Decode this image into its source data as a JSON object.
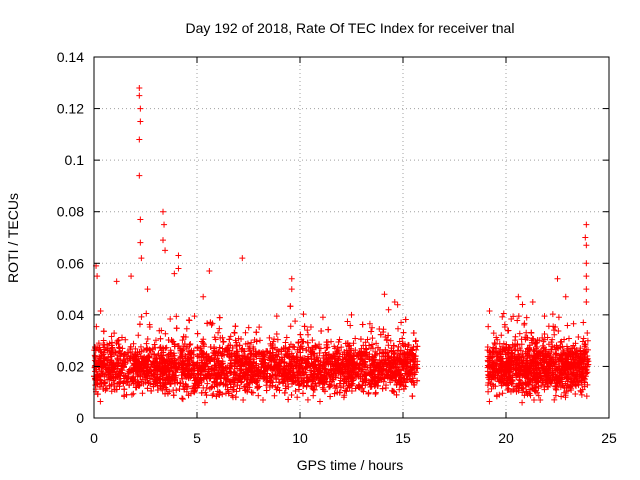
{
  "chart_data": {
    "type": "scatter",
    "title": "Day 192 of 2018, Rate Of TEC Index for receiver tnal",
    "xlabel": "GPS time / hours",
    "ylabel": "ROTI / TECUs",
    "xlim": [
      0,
      25
    ],
    "ylim": [
      0,
      0.14
    ],
    "xticks": [
      0,
      5,
      10,
      15,
      20,
      25
    ],
    "xtick_labels": [
      "0",
      "5",
      "10",
      "15",
      "20",
      "25"
    ],
    "yticks": [
      0,
      0.02,
      0.04,
      0.06,
      0.08,
      0.1,
      0.12,
      0.14
    ],
    "ytick_labels": [
      "0",
      "0.02",
      "0.04",
      "0.06",
      "0.08",
      "0.1",
      "0.12",
      "0.14"
    ],
    "grid": true,
    "marker": "+",
    "color": "#ff0000",
    "series": [
      {
        "name": "ROTI",
        "segments": [
          {
            "x_start": 0.0,
            "x_end": 15.7,
            "typical_range": [
              0.005,
              0.03
            ]
          },
          {
            "x_start": 19.1,
            "x_end": 24.0,
            "typical_range": [
              0.005,
              0.03
            ]
          }
        ],
        "gap": [
          15.7,
          19.1
        ],
        "notable_points": [
          {
            "x": 0.1,
            "y": 0.059
          },
          {
            "x": 0.15,
            "y": 0.055
          },
          {
            "x": 1.1,
            "y": 0.053
          },
          {
            "x": 1.8,
            "y": 0.055
          },
          {
            "x": 2.2,
            "y": 0.128
          },
          {
            "x": 2.2,
            "y": 0.125
          },
          {
            "x": 2.25,
            "y": 0.12
          },
          {
            "x": 2.25,
            "y": 0.115
          },
          {
            "x": 2.2,
            "y": 0.108
          },
          {
            "x": 2.2,
            "y": 0.094
          },
          {
            "x": 2.25,
            "y": 0.077
          },
          {
            "x": 2.25,
            "y": 0.068
          },
          {
            "x": 2.3,
            "y": 0.062
          },
          {
            "x": 2.6,
            "y": 0.05
          },
          {
            "x": 3.35,
            "y": 0.08
          },
          {
            "x": 3.4,
            "y": 0.075
          },
          {
            "x": 3.35,
            "y": 0.069
          },
          {
            "x": 3.45,
            "y": 0.065
          },
          {
            "x": 3.9,
            "y": 0.056
          },
          {
            "x": 4.1,
            "y": 0.063
          },
          {
            "x": 4.1,
            "y": 0.058
          },
          {
            "x": 5.6,
            "y": 0.057
          },
          {
            "x": 5.3,
            "y": 0.047
          },
          {
            "x": 7.2,
            "y": 0.062
          },
          {
            "x": 9.6,
            "y": 0.054
          },
          {
            "x": 9.6,
            "y": 0.05
          },
          {
            "x": 12.5,
            "y": 0.04
          },
          {
            "x": 14.1,
            "y": 0.048
          },
          {
            "x": 14.3,
            "y": 0.042
          },
          {
            "x": 14.6,
            "y": 0.045
          },
          {
            "x": 20.6,
            "y": 0.047
          },
          {
            "x": 20.8,
            "y": 0.044
          },
          {
            "x": 21.3,
            "y": 0.045
          },
          {
            "x": 22.5,
            "y": 0.054
          },
          {
            "x": 22.9,
            "y": 0.047
          },
          {
            "x": 23.9,
            "y": 0.075
          },
          {
            "x": 23.85,
            "y": 0.07
          },
          {
            "x": 23.9,
            "y": 0.067
          },
          {
            "x": 23.9,
            "y": 0.06
          },
          {
            "x": 23.9,
            "y": 0.055
          },
          {
            "x": 23.9,
            "y": 0.05
          },
          {
            "x": 23.9,
            "y": 0.045
          }
        ]
      }
    ]
  }
}
